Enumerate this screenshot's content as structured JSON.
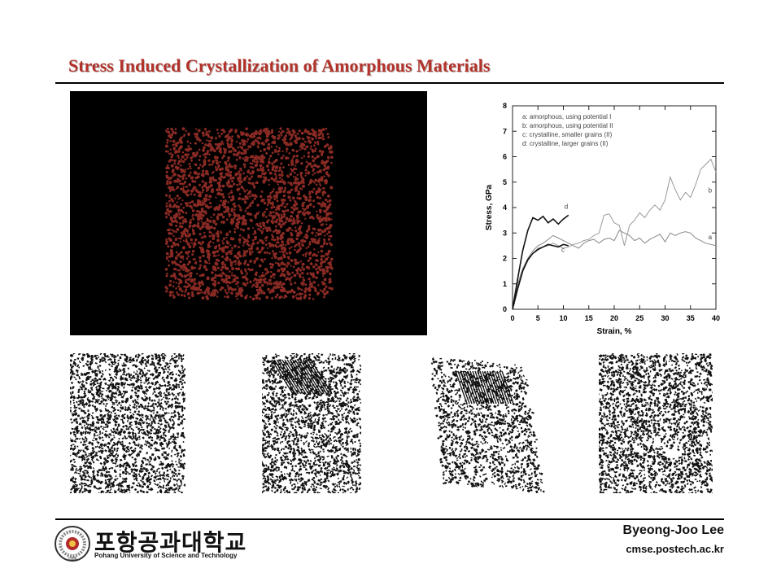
{
  "slide": {
    "title": "Stress Induced Crystallization of Amorphous Materials"
  },
  "footer": {
    "author": "Byeong-Joo Lee",
    "url": "cmse.postech.ac.kr",
    "university_korean": "포항공과대학교",
    "university_english": "Pohang University of Science and Technology",
    "seal_year": "1986"
  },
  "colors": {
    "title": "#b3322a",
    "atoms": "#8a2a24"
  },
  "chart_data": {
    "type": "line",
    "xlabel": "Strain, %",
    "ylabel": "Stress, GPa",
    "xlim": [
      0,
      40
    ],
    "ylim": [
      0,
      8
    ],
    "xticks": [
      0,
      5,
      10,
      15,
      20,
      25,
      30,
      35,
      40
    ],
    "yticks": [
      0,
      1,
      2,
      3,
      4,
      5,
      6,
      7,
      8
    ],
    "legend_position": "top-left",
    "legend": [
      "a: amorphous, using potential I",
      "b: amorphous, using potential II",
      "c: crystalline, smaller grains (II)",
      "d: crystalline, larger grains (II)"
    ],
    "series": [
      {
        "name": "a",
        "color": "#888888",
        "x": [
          0,
          1,
          2,
          3,
          4,
          5,
          6,
          7,
          8,
          9,
          10,
          11,
          12,
          13,
          14,
          15,
          16,
          17,
          18,
          19,
          20,
          21,
          22,
          23,
          24,
          25,
          26,
          27,
          28,
          29,
          30,
          31,
          32,
          33,
          34,
          35,
          36,
          37,
          38,
          39,
          40
        ],
        "y": [
          0,
          1.0,
          1.6,
          2.0,
          2.3,
          2.5,
          2.6,
          2.75,
          2.9,
          2.8,
          2.7,
          2.6,
          2.5,
          2.4,
          2.6,
          2.7,
          2.75,
          2.6,
          2.75,
          2.8,
          2.7,
          3.1,
          3.0,
          2.9,
          2.7,
          2.8,
          2.6,
          2.75,
          2.85,
          2.95,
          2.65,
          3.0,
          2.9,
          3.0,
          3.05,
          3.0,
          2.8,
          2.7,
          2.6,
          2.55,
          2.5
        ]
      },
      {
        "name": "b",
        "color": "#999999",
        "x": [
          0,
          1,
          2,
          3,
          4,
          5,
          6,
          7,
          8,
          9,
          10,
          11,
          12,
          13,
          14,
          15,
          16,
          17,
          18,
          19,
          20,
          21,
          22,
          23,
          24,
          25,
          26,
          27,
          28,
          29,
          30,
          31,
          32,
          33,
          34,
          35,
          36,
          37,
          38,
          39,
          40
        ],
        "y": [
          0,
          0.9,
          1.5,
          1.9,
          2.2,
          2.4,
          2.45,
          2.5,
          2.6,
          2.5,
          2.4,
          2.45,
          2.55,
          2.6,
          2.7,
          2.75,
          2.9,
          3.0,
          3.7,
          3.75,
          3.4,
          3.3,
          2.5,
          3.3,
          3.5,
          3.8,
          3.6,
          3.9,
          4.1,
          3.9,
          4.3,
          5.2,
          4.7,
          4.3,
          4.6,
          4.4,
          4.9,
          5.5,
          5.7,
          5.9,
          5.4
        ]
      },
      {
        "name": "c",
        "color": "#111111",
        "x": [
          0,
          1,
          2,
          3,
          4,
          5,
          6,
          7,
          8,
          9,
          10,
          11
        ],
        "y": [
          0,
          0.8,
          1.5,
          1.95,
          2.2,
          2.35,
          2.45,
          2.55,
          2.5,
          2.45,
          2.55,
          2.5
        ]
      },
      {
        "name": "d",
        "color": "#111111",
        "x": [
          0,
          1,
          2,
          3,
          4,
          5,
          6,
          7,
          8,
          9,
          10,
          11
        ],
        "y": [
          0,
          1.2,
          2.3,
          3.1,
          3.6,
          3.5,
          3.65,
          3.4,
          3.55,
          3.35,
          3.55,
          3.7
        ]
      }
    ],
    "curve_labels": [
      "a",
      "b",
      "c",
      "d"
    ]
  }
}
